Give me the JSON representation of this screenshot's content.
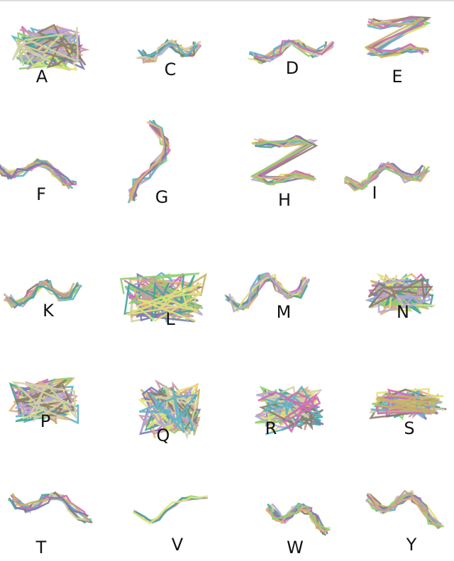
{
  "figure": {
    "panels": [
      {
        "label": "A",
        "style": "blob"
      },
      {
        "label": "C",
        "style": "ribbon"
      },
      {
        "label": "D",
        "style": "ribbon"
      },
      {
        "label": "E",
        "style": "layers"
      },
      {
        "label": "F",
        "style": "sheet"
      },
      {
        "label": "G",
        "style": "vertical"
      },
      {
        "label": "H",
        "style": "layers"
      },
      {
        "label": "I",
        "style": "ribbon"
      },
      {
        "label": "K",
        "style": "ribbon"
      },
      {
        "label": "L",
        "style": "blob"
      },
      {
        "label": "M",
        "style": "ribbon"
      },
      {
        "label": "N",
        "style": "blob"
      },
      {
        "label": "P",
        "style": "blob"
      },
      {
        "label": "Q",
        "style": "blob"
      },
      {
        "label": "R",
        "style": "blob"
      },
      {
        "label": "S",
        "style": "blob"
      },
      {
        "label": "T",
        "style": "sheet"
      },
      {
        "label": "V",
        "style": "single"
      },
      {
        "label": "W",
        "style": "sheet"
      },
      {
        "label": "Y",
        "style": "sheet"
      }
    ],
    "palette": [
      "#5fb3c6",
      "#d46ab5",
      "#c9b267",
      "#7a7ab8",
      "#e3b07a",
      "#8fcf6f",
      "#c79aa6",
      "#46a39a",
      "#e2e27a",
      "#b7a6d8",
      "#8c7b6b",
      "#d2d2a8"
    ]
  }
}
